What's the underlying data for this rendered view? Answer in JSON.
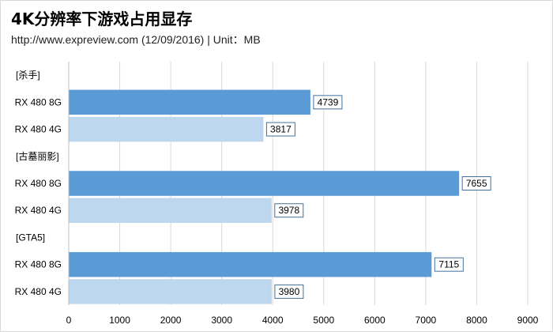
{
  "title": "4K分辨率下游戏占用显存",
  "subtitle": "http://www.expreview.com (12/09/2016) | Unit：MB",
  "chart_data": {
    "type": "bar",
    "orientation": "horizontal",
    "title": "4K分辨率下游戏占用显存",
    "subtitle": "http://www.expreview.com (12/09/2016) | Unit：MB",
    "rows": [
      {
        "label": "[杀手]",
        "type": "group"
      },
      {
        "label": "RX 480 8G",
        "type": "bar",
        "value": 4739,
        "series": "8G"
      },
      {
        "label": "RX 480 4G",
        "type": "bar",
        "value": 3817,
        "series": "4G"
      },
      {
        "label": "[古墓丽影]",
        "type": "group"
      },
      {
        "label": "RX 480 8G",
        "type": "bar",
        "value": 7655,
        "series": "8G"
      },
      {
        "label": "RX 480 4G",
        "type": "bar",
        "value": 3978,
        "series": "4G"
      },
      {
        "label": "[GTA5]",
        "type": "group"
      },
      {
        "label": "RX 480 8G",
        "type": "bar",
        "value": 7115,
        "series": "8G"
      },
      {
        "label": "RX 480 4G",
        "type": "bar",
        "value": 3980,
        "series": "4G"
      }
    ],
    "xlim": [
      0,
      9000
    ],
    "xticks": [
      0,
      1000,
      2000,
      3000,
      4000,
      5000,
      6000,
      7000,
      8000,
      9000
    ],
    "grid": true,
    "colors": {
      "8G": "#5b9bd5",
      "4G": "#bdd7ee",
      "grid": "#d9d9d9",
      "label_border": "#41719c"
    }
  }
}
